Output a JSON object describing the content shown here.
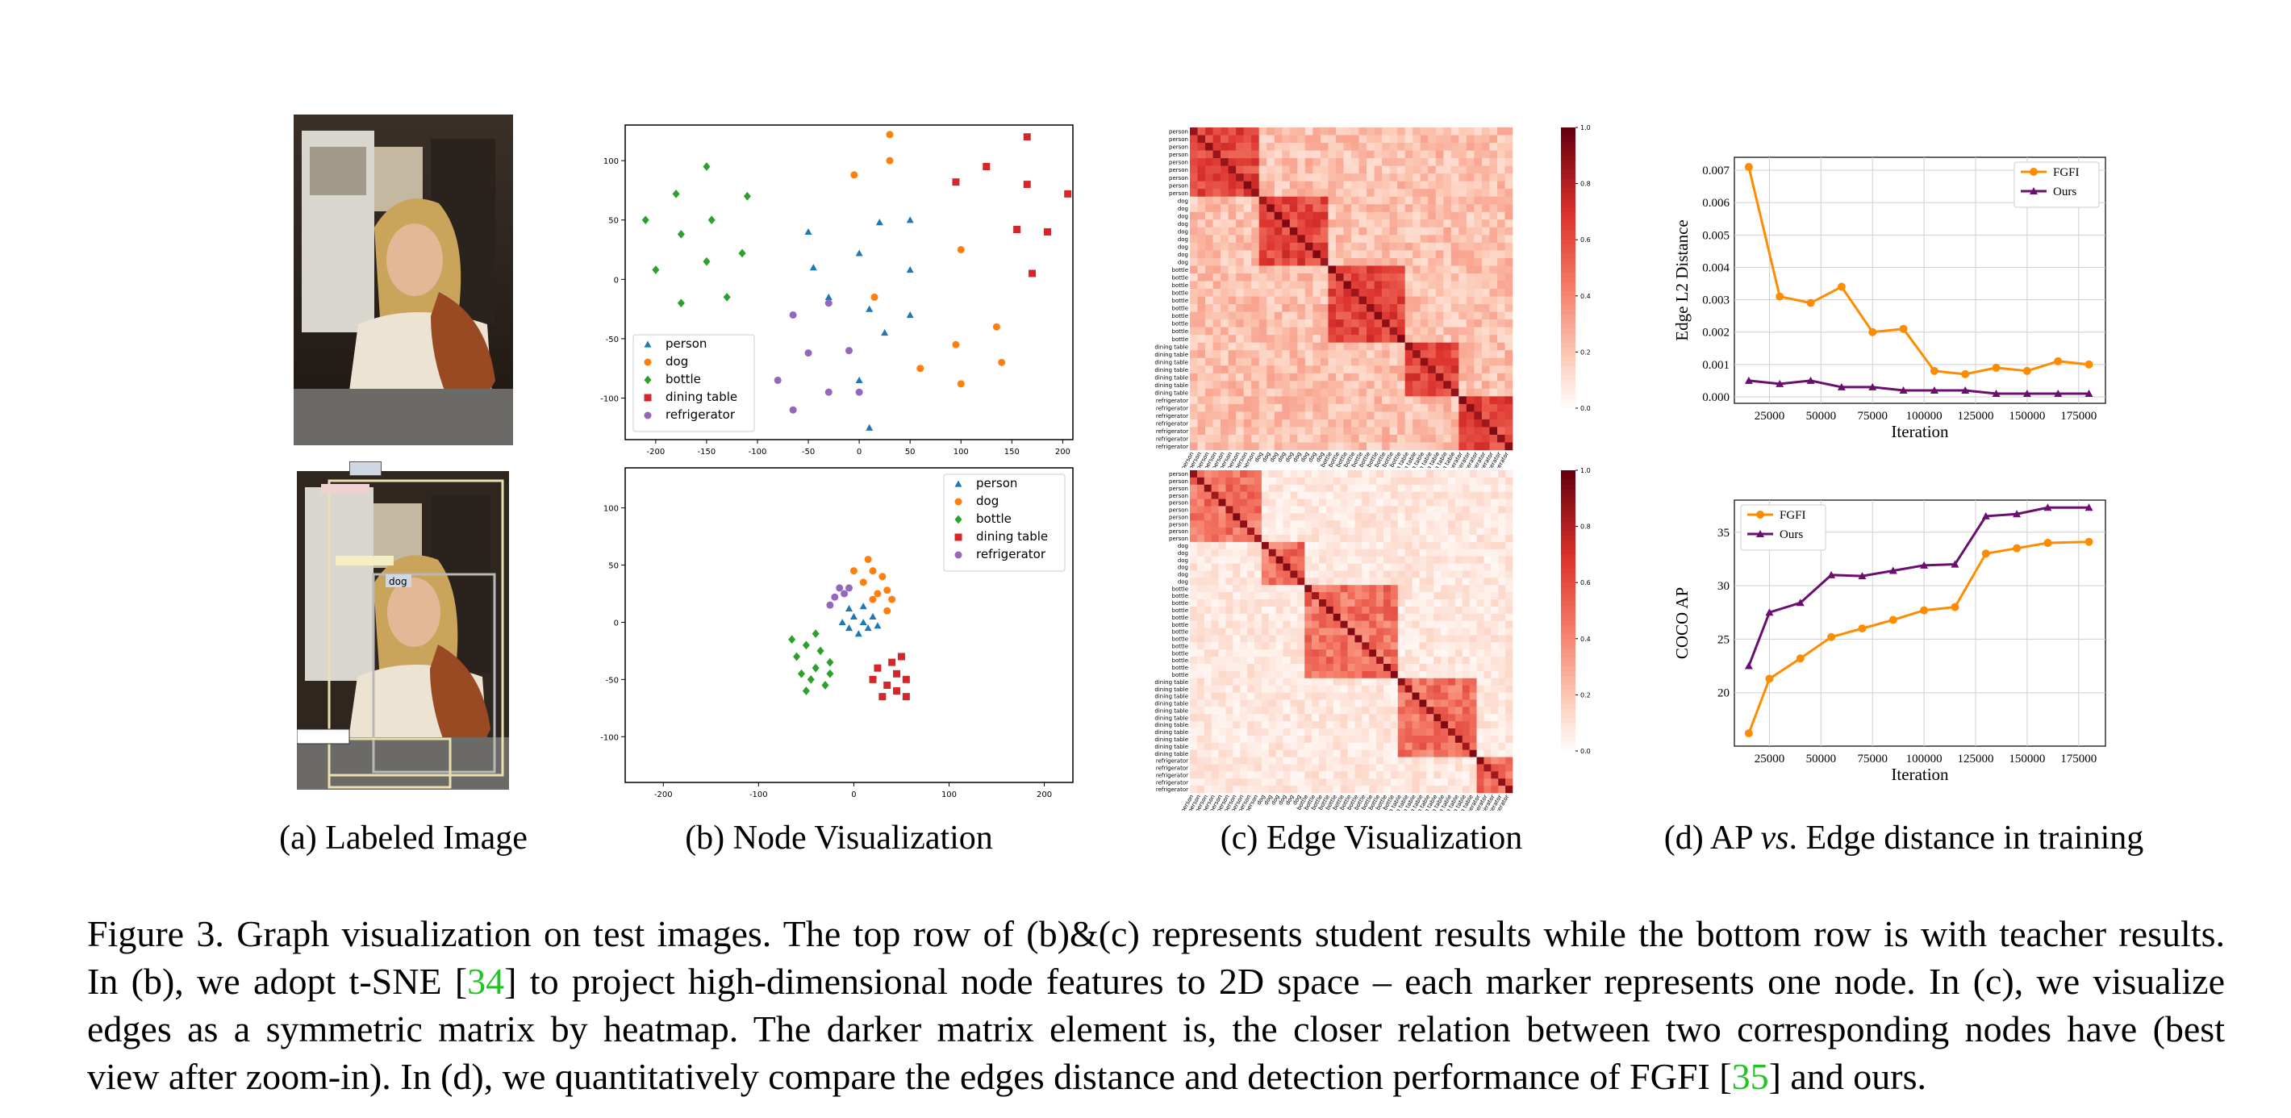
{
  "subcaptions": {
    "a": "(a)  Labeled Image",
    "b": "(b)  Node Visualization",
    "c": "(c)  Edge Visualization",
    "d_pre": "(d)  AP ",
    "d_vs": "vs",
    "d_post": ". Edge distance in training"
  },
  "figure_caption": {
    "l1": "Figure 3. Graph visualization on test images. The top row of (b)&(c) represents student results while the bottom row is with teacher results.",
    "l2_a": "In (b), we adopt t-SNE [",
    "l2_cite": "34",
    "l2_b": "] to project high-dimensional node features to 2D space – each marker represents one node. In (c), we visualize",
    "l3": "edges as a symmetric matrix by heatmap.  The darker matrix element is, the closer relation between two corresponding nodes have (best",
    "l4_a": "view after zoom-in). In (d), we quantitatively compare the edges distance and detection performance of FGFI [",
    "l4_cite": "35",
    "l4_b": "] and ours."
  },
  "photo_labels": {
    "dog": "dog"
  },
  "colors": {
    "person": "#1f77b4",
    "dog": "#ff7f0e",
    "bottle": "#2ca02c",
    "dining_table": "#d62728",
    "refrigerator": "#9467bd",
    "fgfi": "#ff8c00",
    "ours": "#6a0f6f"
  },
  "heatmap_labels": [
    "person",
    "dog",
    "bottle",
    "dining table",
    "refrigerator"
  ],
  "chart_data": [
    {
      "type": "scatter",
      "panel": "b-top",
      "xlim": [
        -230,
        210
      ],
      "ylim": [
        -135,
        130
      ],
      "xticks": [
        -200,
        -150,
        -100,
        -50,
        0,
        50,
        100,
        150,
        200
      ],
      "yticks": [
        -100,
        -50,
        0,
        50,
        100
      ],
      "legend": "bottom-left",
      "series": [
        {
          "name": "person",
          "marker": "triangle",
          "points": [
            [
              -50,
              40
            ],
            [
              -30,
              -15
            ],
            [
              0,
              22
            ],
            [
              20,
              48
            ],
            [
              -45,
              10
            ],
            [
              10,
              -25
            ],
            [
              25,
              -45
            ],
            [
              50,
              8
            ],
            [
              50,
              -30
            ],
            [
              50,
              50
            ],
            [
              10,
              -125
            ],
            [
              0,
              -85
            ]
          ]
        },
        {
          "name": "dog",
          "marker": "circle",
          "points": [
            [
              30,
              122
            ],
            [
              30,
              100
            ],
            [
              -5,
              88
            ],
            [
              100,
              25
            ],
            [
              135,
              -40
            ],
            [
              140,
              -70
            ],
            [
              95,
              -55
            ],
            [
              100,
              -88
            ],
            [
              60,
              -75
            ],
            [
              15,
              -15
            ]
          ]
        },
        {
          "name": "bottle",
          "marker": "diamond",
          "points": [
            [
              -210,
              50
            ],
            [
              -180,
              72
            ],
            [
              -150,
              95
            ],
            [
              -110,
              70
            ],
            [
              -145,
              50
            ],
            [
              -175,
              38
            ],
            [
              -115,
              22
            ],
            [
              -150,
              15
            ],
            [
              -200,
              8
            ],
            [
              -175,
              -20
            ],
            [
              -130,
              -15
            ]
          ]
        },
        {
          "name": "dining table",
          "marker": "square",
          "points": [
            [
              95,
              82
            ],
            [
              125,
              95
            ],
            [
              165,
              120
            ],
            [
              165,
              80
            ],
            [
              205,
              72
            ],
            [
              155,
              42
            ],
            [
              185,
              40
            ],
            [
              170,
              5
            ]
          ]
        },
        {
          "name": "refrigerator",
          "marker": "circle",
          "points": [
            [
              -65,
              -30
            ],
            [
              -30,
              -20
            ],
            [
              -80,
              -85
            ],
            [
              -50,
              -62
            ],
            [
              -10,
              -60
            ],
            [
              -30,
              -95
            ],
            [
              -65,
              -110
            ],
            [
              0,
              -95
            ]
          ]
        }
      ]
    },
    {
      "type": "scatter",
      "panel": "b-bottom",
      "xlim": [
        -240,
        230
      ],
      "ylim": [
        -140,
        135
      ],
      "xticks": [
        -200,
        -100,
        0,
        100,
        200
      ],
      "yticks": [
        -100,
        -50,
        0,
        50,
        100
      ],
      "legend": "top-right",
      "series": [
        {
          "name": "person",
          "marker": "triangle",
          "points": [
            [
              -5,
              12
            ],
            [
              0,
              5
            ],
            [
              10,
              0
            ],
            [
              20,
              5
            ],
            [
              -12,
              0
            ],
            [
              5,
              -10
            ],
            [
              15,
              -5
            ],
            [
              -5,
              -5
            ],
            [
              25,
              -3
            ],
            [
              10,
              14
            ]
          ]
        },
        {
          "name": "dog",
          "marker": "circle",
          "points": [
            [
              10,
              35
            ],
            [
              20,
              45
            ],
            [
              30,
              40
            ],
            [
              15,
              55
            ],
            [
              35,
              28
            ],
            [
              40,
              20
            ],
            [
              25,
              25
            ],
            [
              0,
              45
            ],
            [
              20,
              20
            ],
            [
              35,
              10
            ]
          ]
        },
        {
          "name": "bottle",
          "marker": "diamond",
          "points": [
            [
              -60,
              -30
            ],
            [
              -50,
              -20
            ],
            [
              -40,
              -40
            ],
            [
              -35,
              -25
            ],
            [
              -45,
              -50
            ],
            [
              -25,
              -35
            ],
            [
              -55,
              -45
            ],
            [
              -30,
              -55
            ],
            [
              -65,
              -15
            ],
            [
              -40,
              -10
            ],
            [
              -25,
              -45
            ],
            [
              -50,
              -60
            ]
          ]
        },
        {
          "name": "dining table",
          "marker": "square",
          "points": [
            [
              25,
              -40
            ],
            [
              35,
              -55
            ],
            [
              45,
              -45
            ],
            [
              50,
              -30
            ],
            [
              30,
              -65
            ],
            [
              45,
              -60
            ],
            [
              55,
              -50
            ],
            [
              20,
              -50
            ],
            [
              40,
              -35
            ],
            [
              55,
              -65
            ]
          ]
        },
        {
          "name": "refrigerator",
          "marker": "circle",
          "points": [
            [
              -20,
              22
            ],
            [
              -15,
              30
            ],
            [
              -10,
              25
            ],
            [
              -25,
              15
            ],
            [
              -5,
              30
            ]
          ]
        }
      ]
    },
    {
      "type": "heatmap",
      "panel": "c-top",
      "row_labels": [
        "person",
        "person",
        "person",
        "person",
        "person",
        "person",
        "person",
        "person",
        "person",
        "dog",
        "dog",
        "dog",
        "dog",
        "dog",
        "dog",
        "dog",
        "dog",
        "dog",
        "bottle",
        "bottle",
        "bottle",
        "bottle",
        "bottle",
        "bottle",
        "bottle",
        "bottle",
        "bottle",
        "bottle",
        "dining table",
        "dining table",
        "dining table",
        "dining table",
        "dining table",
        "dining table",
        "dining table",
        "refrigerator",
        "refrigerator",
        "refrigerator",
        "refrigerator",
        "refrigerator",
        "refrigerator",
        "refrigerator"
      ],
      "blocks": [
        9,
        9,
        10,
        7,
        7
      ],
      "colorbar_ticks": [
        0.0,
        0.2,
        0.4,
        0.6,
        0.8,
        1.0
      ]
    },
    {
      "type": "heatmap",
      "panel": "c-bottom",
      "row_labels": [
        "person",
        "person",
        "person",
        "person",
        "person",
        "person",
        "person",
        "person",
        "person",
        "person",
        "dog",
        "dog",
        "dog",
        "dog",
        "dog",
        "dog",
        "bottle",
        "bottle",
        "bottle",
        "bottle",
        "bottle",
        "bottle",
        "bottle",
        "bottle",
        "bottle",
        "bottle",
        "bottle",
        "bottle",
        "bottle",
        "dining table",
        "dining table",
        "dining table",
        "dining table",
        "dining table",
        "dining table",
        "dining table",
        "dining table",
        "dining table",
        "dining table",
        "dining table",
        "refrigerator",
        "refrigerator",
        "refrigerator",
        "refrigerator",
        "refrigerator"
      ],
      "blocks": [
        10,
        6,
        13,
        11,
        5
      ],
      "colorbar_ticks": [
        0.0,
        0.2,
        0.4,
        0.6,
        0.8,
        1.0
      ]
    },
    {
      "type": "line",
      "panel": "d-top",
      "xlabel": "Iteration",
      "ylabel": "Edge L2 Distance",
      "xlim": [
        8000,
        188000
      ],
      "ylim": [
        -0.0002,
        0.0074
      ],
      "xticks": [
        25000,
        50000,
        75000,
        100000,
        125000,
        150000,
        175000
      ],
      "yticks": [
        0.0,
        0.001,
        0.002,
        0.003,
        0.004,
        0.005,
        0.006,
        0.007
      ],
      "ytick_labels": [
        "0.000",
        "0.001",
        "0.002",
        "0.003",
        "0.004",
        "0.005",
        "0.006",
        "0.007"
      ],
      "legend": "top-right",
      "x": [
        15000,
        30000,
        45000,
        60000,
        75000,
        90000,
        105000,
        120000,
        135000,
        150000,
        165000,
        180000
      ],
      "series": [
        {
          "name": "FGFI",
          "marker": "circle",
          "values": [
            0.0071,
            0.0031,
            0.0029,
            0.0034,
            0.002,
            0.0021,
            0.0008,
            0.0007,
            0.0009,
            0.0008,
            0.0011,
            0.001
          ]
        },
        {
          "name": "Ours",
          "marker": "triangle",
          "values": [
            0.0005,
            0.0004,
            0.0005,
            0.0003,
            0.0003,
            0.0002,
            0.0002,
            0.0002,
            0.0001,
            0.0001,
            0.0001,
            0.0001
          ]
        }
      ]
    },
    {
      "type": "line",
      "panel": "d-bottom",
      "xlabel": "Iteration",
      "ylabel": "COCO AP",
      "xlim": [
        8000,
        188000
      ],
      "ylim": [
        15,
        38
      ],
      "xticks": [
        25000,
        50000,
        75000,
        100000,
        125000,
        150000,
        175000
      ],
      "yticks": [
        20,
        25,
        30,
        35
      ],
      "ytick_labels": [
        "20",
        "25",
        "30",
        "35"
      ],
      "legend": "top-left",
      "x": [
        15000,
        25000,
        40000,
        55000,
        70000,
        85000,
        100000,
        115000,
        130000,
        145000,
        160000,
        180000
      ],
      "series": [
        {
          "name": "FGFI",
          "marker": "circle",
          "values": [
            16.2,
            21.3,
            23.2,
            25.2,
            26.0,
            26.8,
            27.7,
            28.0,
            33.0,
            33.5,
            34.0,
            34.1
          ]
        },
        {
          "name": "Ours",
          "marker": "triangle",
          "values": [
            22.5,
            27.5,
            28.4,
            31.0,
            30.9,
            31.4,
            31.9,
            32.0,
            36.5,
            36.7,
            37.3,
            37.3
          ]
        }
      ]
    }
  ]
}
